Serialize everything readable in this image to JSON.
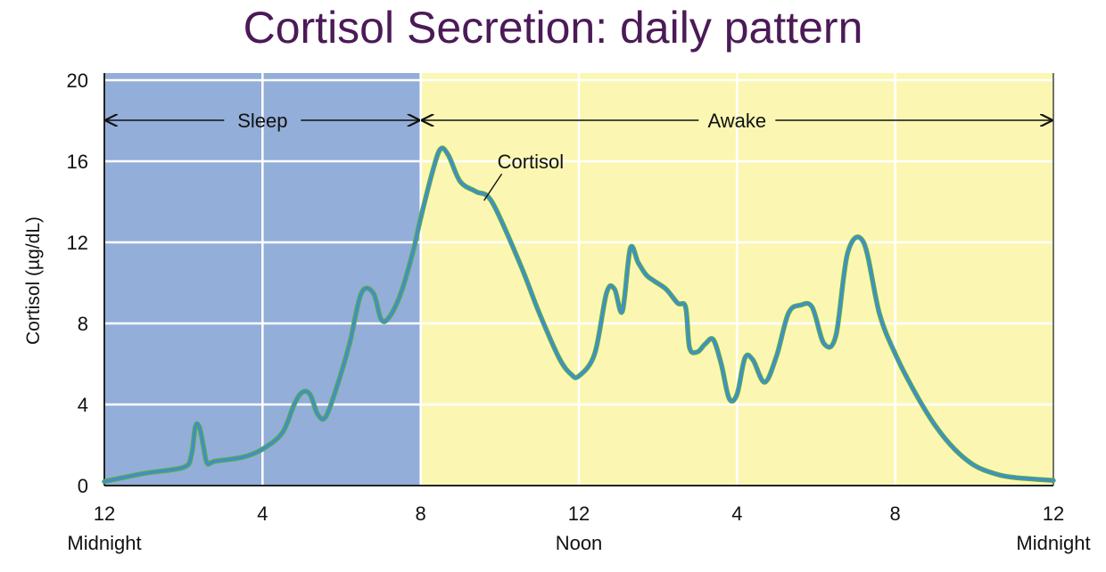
{
  "title": "Cortisol Secretion: daily pattern",
  "chart_data": {
    "type": "line",
    "title": "Cortisol Secretion: daily pattern",
    "ylabel": "Cortisol (µg/dL)",
    "xlabel": "",
    "ylim": [
      0,
      20
    ],
    "xlim": [
      0,
      24
    ],
    "grid": true,
    "y_ticks": [
      0,
      4,
      8,
      12,
      16,
      20
    ],
    "x_ticks": [
      {
        "value": 0,
        "label": "12",
        "sublabel": "Midnight"
      },
      {
        "value": 4,
        "label": "4",
        "sublabel": ""
      },
      {
        "value": 8,
        "label": "8",
        "sublabel": ""
      },
      {
        "value": 12,
        "label": "12",
        "sublabel": "Noon"
      },
      {
        "value": 16,
        "label": "4",
        "sublabel": ""
      },
      {
        "value": 20,
        "label": "8",
        "sublabel": ""
      },
      {
        "value": 24,
        "label": "12",
        "sublabel": "Midnight"
      }
    ],
    "bands": [
      {
        "label": "Sleep",
        "start": 0,
        "end": 8,
        "color": "#93aed8"
      },
      {
        "label": "Awake",
        "start": 8,
        "end": 24,
        "color": "#fbf7b3"
      }
    ],
    "series": [
      {
        "name": "Cortisol",
        "color": "#3f8ed0",
        "outline": "#5aa84a",
        "x": [
          0,
          1,
          2,
          2.2,
          2.3,
          2.4,
          2.5,
          2.6,
          2.8,
          3.5,
          4,
          4.5,
          4.8,
          5,
          5.2,
          5.4,
          5.6,
          5.9,
          6.2,
          6.5,
          6.8,
          7,
          7.2,
          7.5,
          7.8,
          8,
          8.3,
          8.5,
          8.7,
          9,
          9.4,
          9.8,
          10.5,
          11,
          11.5,
          11.8,
          12,
          12.4,
          12.7,
          12.9,
          13.1,
          13.3,
          13.5,
          13.7,
          13.9,
          14.2,
          14.5,
          14.7,
          14.8,
          15,
          15.2,
          15.4,
          15.6,
          15.8,
          16,
          16.2,
          16.4,
          16.7,
          17,
          17.3,
          17.6,
          17.9,
          18.2,
          18.5,
          18.8,
          19.2,
          19.6,
          20,
          20.5,
          21,
          21.5,
          22,
          22.5,
          23,
          24
        ],
        "y": [
          0.2,
          0.6,
          0.9,
          1.5,
          2.9,
          2.9,
          2.0,
          1.1,
          1.2,
          1.4,
          1.8,
          2.6,
          4.0,
          4.6,
          4.5,
          3.5,
          3.4,
          5.0,
          7.0,
          9.5,
          9.5,
          8.2,
          8.3,
          9.5,
          11.5,
          13.2,
          15.5,
          16.6,
          16.3,
          15.0,
          14.5,
          14.0,
          11.0,
          8.5,
          6.3,
          5.5,
          5.4,
          6.5,
          9.5,
          9.7,
          8.6,
          11.7,
          11.0,
          10.4,
          10.1,
          9.7,
          9.0,
          8.8,
          6.8,
          6.6,
          7.0,
          7.2,
          6.0,
          4.3,
          4.5,
          6.3,
          6.2,
          5.1,
          6.4,
          8.5,
          8.9,
          8.8,
          7.0,
          7.4,
          11.5,
          12.0,
          8.5,
          6.5,
          4.6,
          3.0,
          1.8,
          1.0,
          0.6,
          0.4,
          0.25
        ]
      }
    ]
  }
}
